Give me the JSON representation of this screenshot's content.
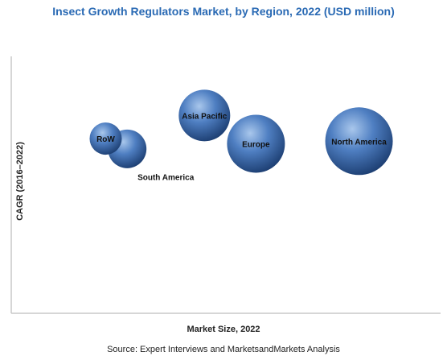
{
  "chart_data": {
    "type": "scatter",
    "title": "Insect Growth Regulators Market, by Region, 2022 (USD million)",
    "xlabel": "Market Size, 2022",
    "ylabel": "CAGR (2016–2022)",
    "source": "Source: Expert Interviews and MarketsandMarkets Analysis",
    "xlim": [
      0,
      100
    ],
    "ylim": [
      0,
      100
    ],
    "grid": false,
    "legend": "none",
    "series": [
      {
        "points": [
          {
            "label": "RoW",
            "x": 22,
            "y": 68,
            "size": 20
          },
          {
            "label": "South America",
            "x": 27,
            "y": 64,
            "size": 24
          },
          {
            "label": "Asia Pacific",
            "x": 45,
            "y": 77,
            "size": 32
          },
          {
            "label": "Europe",
            "x": 57,
            "y": 66,
            "size": 36
          },
          {
            "label": "North America",
            "x": 81,
            "y": 67,
            "size": 42
          }
        ]
      }
    ],
    "colors": {
      "bubble_light": "#a9c7ec",
      "bubble_mid": "#4f7fc2",
      "bubble_dark": "#1d3f73",
      "axis": "#c8c8c8",
      "title": "#2a6ab4"
    }
  }
}
